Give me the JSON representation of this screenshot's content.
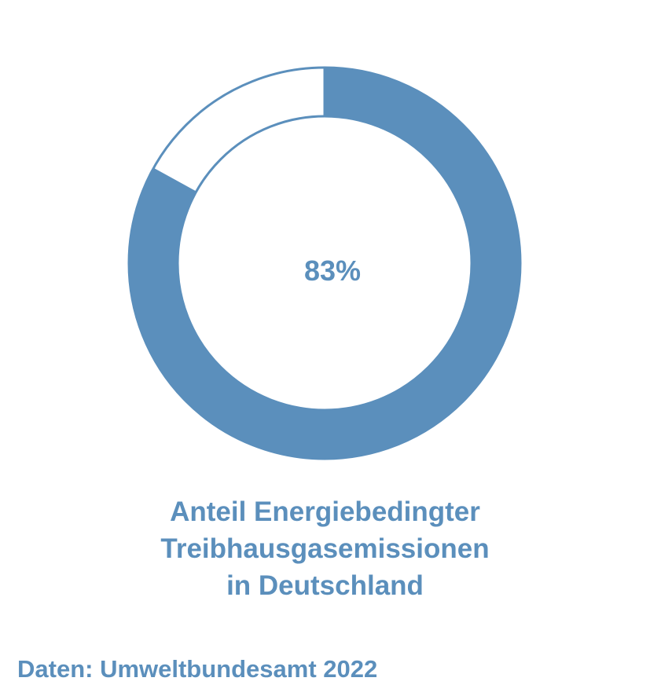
{
  "colors": {
    "accent": "#5b8fbc",
    "background": "#ffffff"
  },
  "chart_data": {
    "type": "pie",
    "style": "donut",
    "slices": [
      {
        "value": 83,
        "color": "#5b8fbc"
      },
      {
        "value": 17,
        "color": "#ffffff"
      }
    ],
    "center_label": "83%",
    "title_lines": [
      "Anteil Energiebedingter",
      "Treibhausgasemissionen",
      "in Deutschland"
    ]
  },
  "source": "Daten: Umweltbundesamt 2022"
}
